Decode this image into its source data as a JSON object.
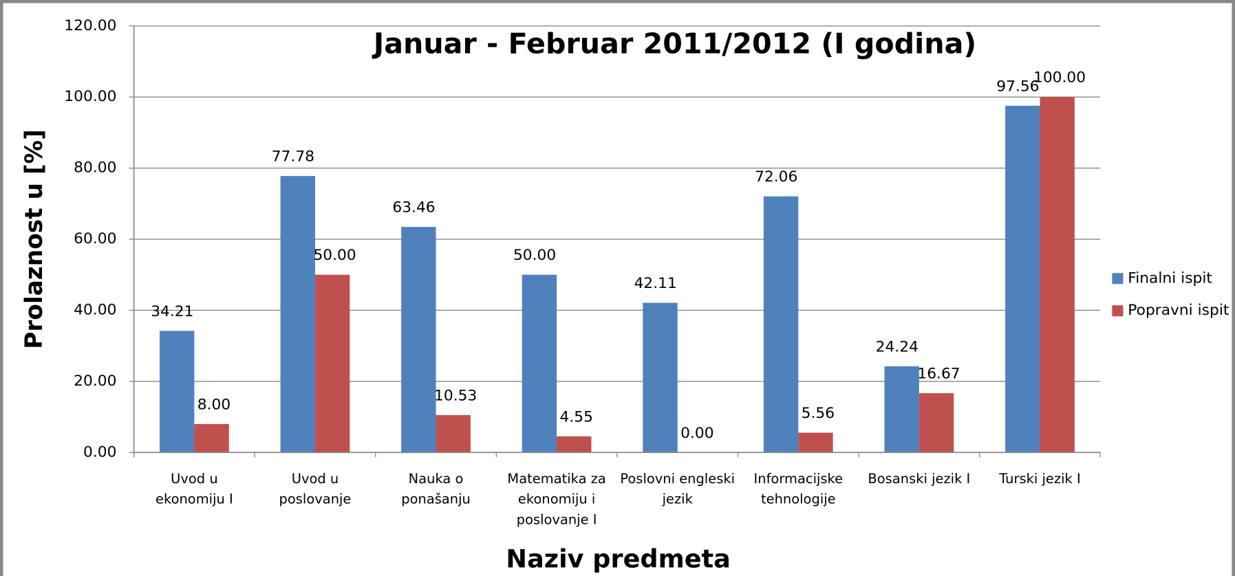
{
  "chart_data": {
    "type": "bar",
    "title": "Januar - Februar 2011/2012 (I godina)",
    "x_label": "Naziv predmeta",
    "y_label": "Prolaznost u [%]",
    "categories": [
      "Uvod u ekonomiju I",
      "Uvod u poslovanje",
      "Nauka o ponašanju",
      "Matematika za ekonomiju i poslovanje I",
      "Poslovni engleski jezik",
      "Informacijske tehnologije",
      "Bosanski jezik I",
      "Turski jezik I"
    ],
    "series": [
      {
        "name": "Finalni ispit",
        "color": "#4f81bd",
        "values": [
          34.21,
          77.78,
          63.46,
          50,
          42.11,
          72.06,
          24.24,
          97.56
        ],
        "value_labels": [
          "34.21",
          "77.78",
          "63.46",
          "50.00",
          "42.11",
          "72.06",
          "24.24",
          "97.56"
        ]
      },
      {
        "name": "Popravni ispit",
        "color": "#c0504d",
        "values": [
          8,
          50,
          10.53,
          4.55,
          0,
          5.56,
          16.67,
          100
        ],
        "value_labels": [
          "8.00",
          "50.00",
          "10.53",
          "4.55",
          "0.00",
          "5.56",
          "16.67",
          "100.00"
        ]
      }
    ],
    "ylim": [
      0,
      120
    ],
    "yticks": [
      {
        "value": 0,
        "label": "0.00"
      },
      {
        "value": 20,
        "label": "20.00"
      },
      {
        "value": 40,
        "label": "40.00"
      },
      {
        "value": 60,
        "label": "60.00"
      },
      {
        "value": 80,
        "label": "80.00"
      },
      {
        "value": 100,
        "label": "100.00"
      },
      {
        "value": 120,
        "label": "120.00"
      }
    ],
    "grid": true,
    "legend": "right"
  }
}
